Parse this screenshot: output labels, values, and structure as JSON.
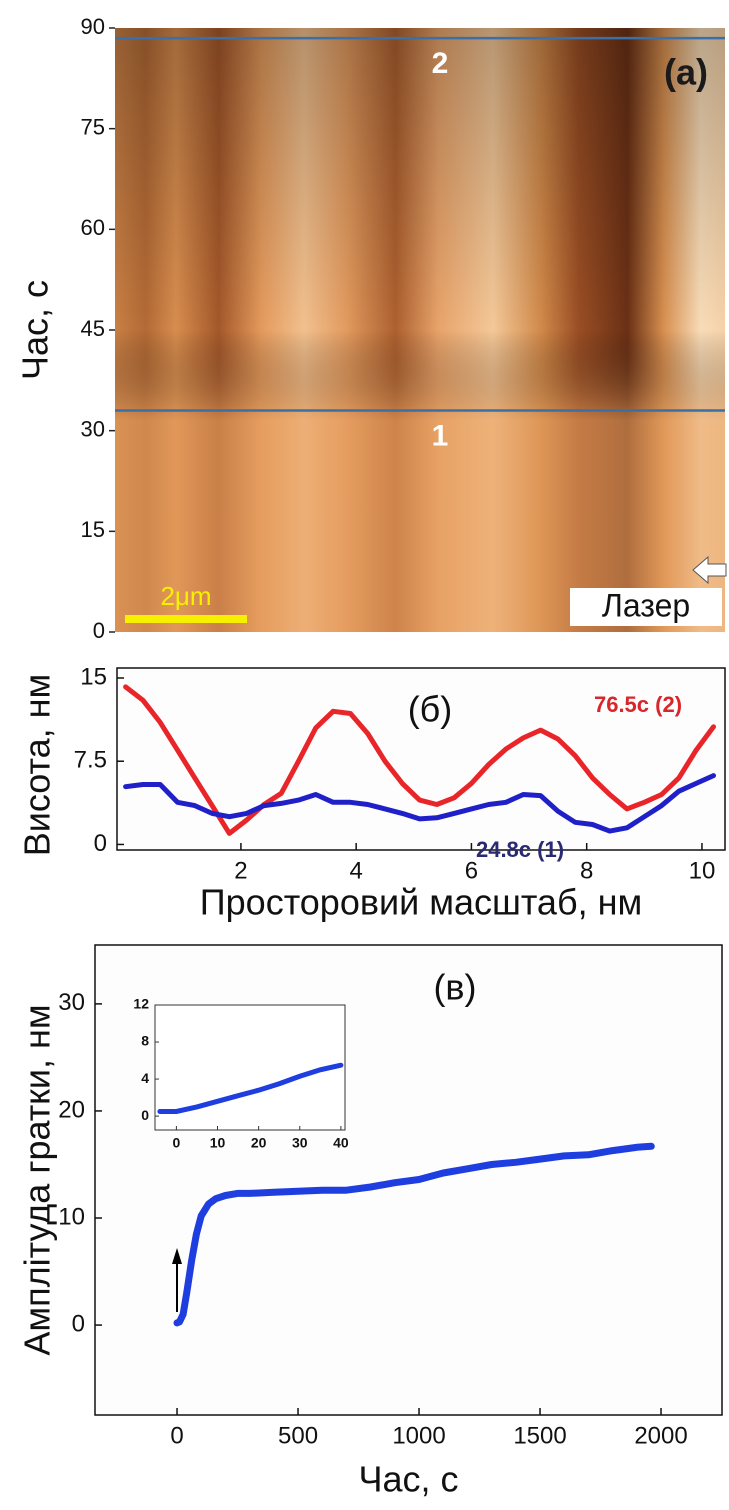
{
  "chart_data": [
    {
      "type": "image",
      "panel_label": "(a)",
      "ylabel": "Час, с",
      "ylim": [
        0,
        90
      ],
      "yticks": [
        0,
        15,
        30,
        45,
        60,
        75,
        90
      ],
      "lines": [
        {
          "label": "2",
          "value": 88.5
        },
        {
          "label": "1",
          "value": 33
        }
      ],
      "scale_bar": "2μm",
      "annotation": "Лазер"
    },
    {
      "type": "line",
      "panel_label": "(б)",
      "xlabel": "Просторовий масштаб, нм",
      "ylabel": "Висота, нм",
      "xlim": [
        -0.15,
        10.4
      ],
      "ylim": [
        -0.5,
        15.9
      ],
      "xticks": [
        2,
        4,
        6,
        8,
        10
      ],
      "yticks": [
        0,
        7.5,
        15
      ],
      "x": [
        0,
        0.3,
        0.6,
        0.9,
        1.2,
        1.5,
        1.8,
        2.1,
        2.4,
        2.7,
        3.0,
        3.3,
        3.6,
        3.9,
        4.2,
        4.5,
        4.8,
        5.1,
        5.4,
        5.7,
        6.0,
        6.3,
        6.6,
        6.9,
        7.2,
        7.5,
        7.8,
        8.1,
        8.4,
        8.7,
        9.0,
        9.3,
        9.6,
        9.9,
        10.2
      ],
      "series": [
        {
          "name": "76.5с (2)",
          "color": "#e8262a",
          "values": [
            14.2,
            13,
            11,
            8.5,
            6,
            3.5,
            1.0,
            2.2,
            3.6,
            4.6,
            7.5,
            10.5,
            12.0,
            11.8,
            10,
            7.5,
            5.5,
            4.0,
            3.6,
            4.2,
            5.5,
            7.2,
            8.6,
            9.6,
            10.3,
            9.5,
            8.0,
            6.0,
            4.5,
            3.2,
            3.8,
            4.5,
            6.0,
            8.5,
            10.6
          ]
        },
        {
          "name": "24.8с (1)",
          "color": "#2020c8",
          "values": [
            5.2,
            5.4,
            5.4,
            3.8,
            3.5,
            2.8,
            2.5,
            2.8,
            3.5,
            3.7,
            4.0,
            4.5,
            3.8,
            3.8,
            3.6,
            3.2,
            2.8,
            2.3,
            2.4,
            2.8,
            3.2,
            3.6,
            3.8,
            4.5,
            4.4,
            3.0,
            2.0,
            1.8,
            1.2,
            1.5,
            2.5,
            3.5,
            4.8,
            5.5,
            6.2
          ]
        }
      ]
    },
    {
      "type": "line",
      "panel_label": "(в)",
      "xlabel": "Час, с",
      "ylabel": "Амплітуда гратки, нм",
      "xlim": [
        -339,
        2252
      ],
      "ylim": [
        -8.4,
        35.5
      ],
      "xticks": [
        0,
        500,
        1000,
        1500,
        2000
      ],
      "yticks": [
        0,
        10,
        20,
        30
      ],
      "x": [
        0,
        10,
        25,
        40,
        60,
        80,
        100,
        130,
        160,
        200,
        250,
        300,
        400,
        500,
        600,
        700,
        800,
        900,
        1000,
        1100,
        1200,
        1300,
        1400,
        1500,
        1600,
        1700,
        1800,
        1900,
        1960
      ],
      "series": [
        {
          "color": "#1e3ee0",
          "values": [
            0.2,
            0.3,
            1,
            3,
            6,
            8.5,
            10.2,
            11.3,
            11.8,
            12.1,
            12.3,
            12.3,
            12.4,
            12.5,
            12.6,
            12.6,
            12.9,
            13.3,
            13.6,
            14.2,
            14.6,
            15.0,
            15.2,
            15.5,
            15.8,
            15.9,
            16.3,
            16.6,
            16.7
          ]
        }
      ],
      "inset": {
        "xlim": [
          -5.2,
          41
        ],
        "ylim": [
          -1.5,
          12
        ],
        "xticks": [
          0,
          10,
          20,
          30,
          40
        ],
        "yticks": [
          0,
          4,
          8,
          12
        ],
        "x": [
          -4,
          0,
          5,
          10,
          15,
          20,
          25,
          30,
          35,
          40
        ],
        "values": [
          0.5,
          0.5,
          1.0,
          1.6,
          2.2,
          2.8,
          3.5,
          4.3,
          5.0,
          5.5
        ]
      }
    }
  ]
}
